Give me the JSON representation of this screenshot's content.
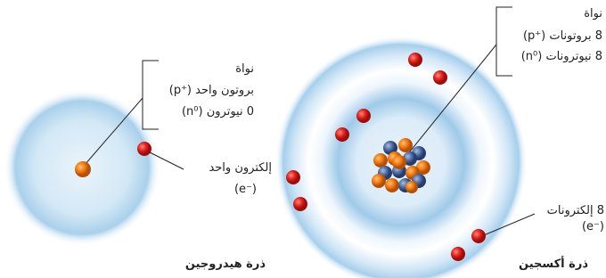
{
  "hydrogen": {
    "title": "ذرة هيدروجين",
    "nucleus_label": "نواة",
    "protons": {
      "text": "بروتون واحد",
      "symbol": "(p⁺)"
    },
    "neutrons": {
      "text": "0 نيوترون",
      "symbol": "(n⁰)"
    },
    "electrons": {
      "text": "إلكترون واحد",
      "symbol": "(e⁻)"
    }
  },
  "oxygen": {
    "title": "ذرة أكسجين",
    "nucleus_label": "نواة",
    "protons": {
      "text": "8 بروتونات",
      "symbol": "(p⁺)"
    },
    "neutrons": {
      "text": "8 نيوترونات",
      "symbol": "(n⁰)"
    },
    "electrons": {
      "text": "8 إلكترونات",
      "symbol": "(e⁻)"
    }
  }
}
